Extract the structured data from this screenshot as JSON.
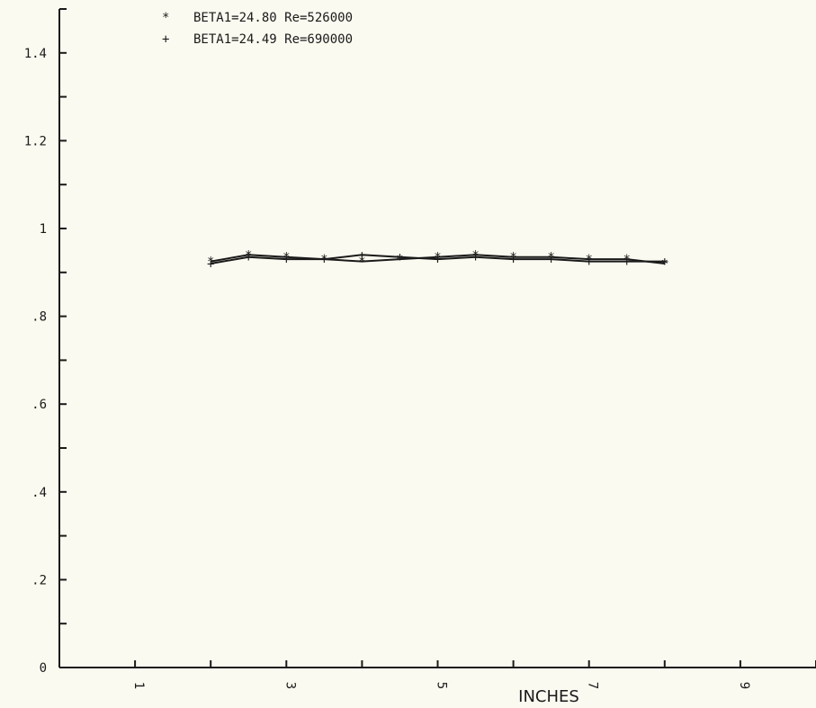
{
  "chart_data": {
    "type": "line",
    "title": "",
    "xlabel": "INCHES",
    "ylabel": "",
    "xlim": [
      0,
      10
    ],
    "ylim": [
      0,
      1.5
    ],
    "x_ticks": [
      1,
      2,
      3,
      4,
      5,
      6,
      7,
      8,
      9,
      10
    ],
    "x_tick_labels": [
      {
        "x": 1,
        "label": "1"
      },
      {
        "x": 3,
        "label": "3"
      },
      {
        "x": 5,
        "label": "5"
      },
      {
        "x": 7,
        "label": "7"
      },
      {
        "x": 9,
        "label": "9"
      }
    ],
    "y_ticks": [
      0,
      0.1,
      0.2,
      0.3,
      0.4,
      0.5,
      0.6,
      0.7,
      0.8,
      0.9,
      1.0,
      1.1,
      1.2,
      1.3,
      1.4,
      1.5
    ],
    "y_tick_labels": [
      {
        "y": 0,
        "label": "0"
      },
      {
        "y": 0.2,
        "label": ".2"
      },
      {
        "y": 0.4,
        "label": ".4"
      },
      {
        "y": 0.6,
        "label": ".6"
      },
      {
        "y": 0.8,
        "label": ".8"
      },
      {
        "y": 1.0,
        "label": "1"
      },
      {
        "y": 1.2,
        "label": "1.2"
      },
      {
        "y": 1.4,
        "label": "1.4"
      }
    ],
    "legend_position": "top-left",
    "series": [
      {
        "name": "BETA1=24.80  Re=526000",
        "marker": "*",
        "color": "#1a1a1a",
        "x": [
          2.0,
          2.5,
          3.0,
          3.5,
          4.0,
          4.5,
          5.0,
          5.5,
          6.0,
          6.5,
          7.0,
          7.5,
          8.0
        ],
        "y": [
          0.925,
          0.94,
          0.935,
          0.93,
          0.925,
          0.93,
          0.935,
          0.94,
          0.935,
          0.935,
          0.93,
          0.93,
          0.92
        ]
      },
      {
        "name": "BETA1=24.49  Re=690000",
        "marker": "+",
        "color": "#1a1a1a",
        "x": [
          2.0,
          2.5,
          3.0,
          3.5,
          4.0,
          4.5,
          5.0,
          5.5,
          6.0,
          6.5,
          7.0,
          7.5,
          8.0
        ],
        "y": [
          0.92,
          0.935,
          0.93,
          0.93,
          0.94,
          0.935,
          0.93,
          0.935,
          0.93,
          0.93,
          0.925,
          0.925,
          0.925
        ]
      }
    ]
  }
}
